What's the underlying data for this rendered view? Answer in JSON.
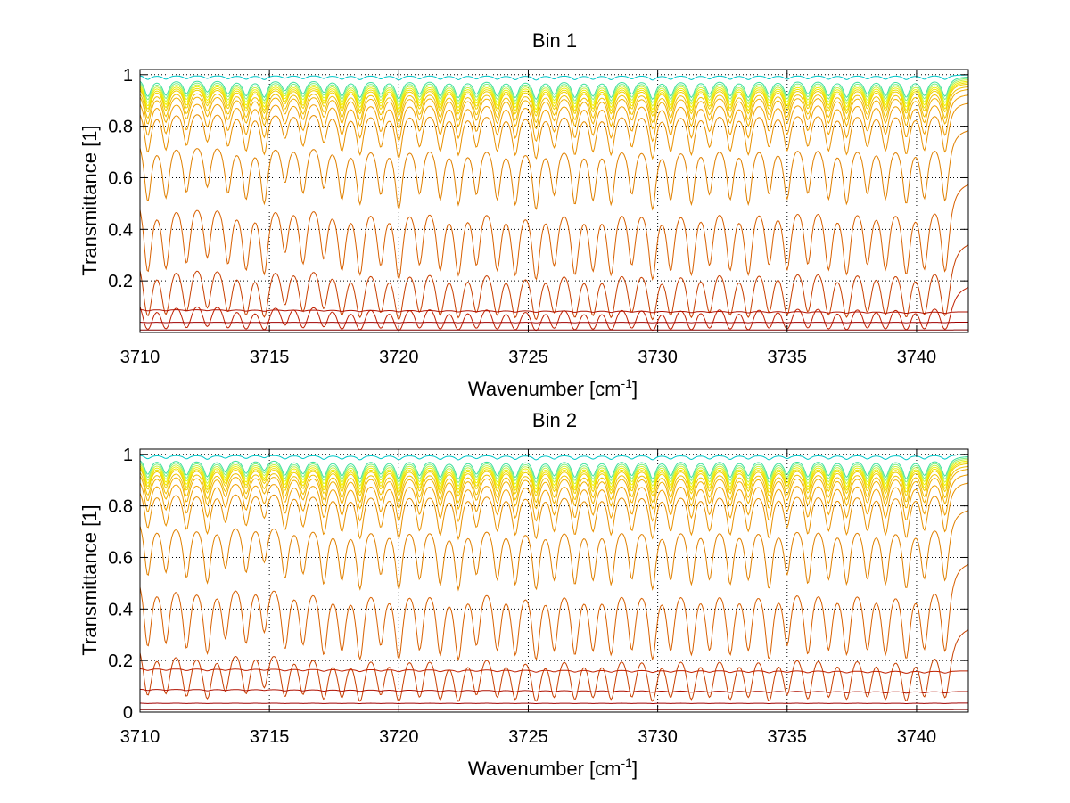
{
  "figure": {
    "background": "#ffffff"
  },
  "chart_data": [
    {
      "type": "line",
      "title": "Bin 1",
      "xlabel": "Wavenumber [cm",
      "xlabel_sup": "-1",
      "xlabel_end": "]",
      "ylabel": "Transmittance [1]",
      "xlim": [
        3710,
        3742
      ],
      "ylim": [
        0,
        1.02
      ],
      "xticks": [
        3710,
        3715,
        3720,
        3725,
        3730,
        3735,
        3740
      ],
      "xtick_labels": [
        "3710",
        "3715",
        "3720",
        "3725",
        "3730",
        "3735",
        "3740"
      ],
      "yticks": [
        0.2,
        0.4,
        0.6,
        0.8,
        1
      ],
      "ytick_labels": [
        "0.2",
        "0.4",
        "0.6",
        "0.8",
        "1"
      ],
      "grid": true,
      "curve_baselines": [
        1.0,
        0.995,
        0.99,
        0.985,
        0.98,
        0.975,
        0.97,
        0.96,
        0.95,
        0.93,
        0.9,
        0.8,
        0.6,
        0.37,
        0.2,
        0.09,
        0.04,
        0.01
      ],
      "curve_colors": [
        "#00c8c8",
        "#40e0a0",
        "#80f080",
        "#c8f040",
        "#f0f000",
        "#f0e000",
        "#f0d000",
        "#f0c000",
        "#f0b000",
        "#f0a000",
        "#e89000",
        "#e08000",
        "#d86000",
        "#c84000",
        "#c02000",
        "#b01000",
        "#a00000",
        "#800000"
      ],
      "line_positions": [
        3710.3,
        3711.0,
        3711.8,
        3712.6,
        3713.4,
        3714.1,
        3714.8,
        3715.6,
        3716.3,
        3717.1,
        3717.8,
        3718.5,
        3719.3,
        3720.0,
        3720.8,
        3721.6,
        3722.3,
        3723.0,
        3723.8,
        3724.5,
        3725.3,
        3726.0,
        3726.8,
        3727.5,
        3728.2,
        3729.0,
        3729.8,
        3730.5,
        3731.3,
        3732.0,
        3732.8,
        3733.5,
        3734.3,
        3735.0,
        3735.8,
        3736.6,
        3737.3,
        3738.1,
        3738.8,
        3739.6,
        3740.3,
        3741.1
      ],
      "line_depths": [
        0.55,
        0.5,
        0.45,
        0.4,
        0.45,
        0.5,
        0.55,
        0.35,
        0.45,
        0.4,
        0.5,
        0.55,
        0.45,
        0.6,
        0.45,
        0.5,
        0.55,
        0.45,
        0.5,
        0.55,
        0.6,
        0.45,
        0.55,
        0.5,
        0.55,
        0.45,
        0.6,
        0.5,
        0.55,
        0.45,
        0.5,
        0.55,
        0.45,
        0.5,
        0.45,
        0.5,
        0.55,
        0.45,
        0.5,
        0.55,
        0.5,
        0.55
      ]
    },
    {
      "type": "line",
      "title": "Bin 2",
      "xlabel": "Wavenumber [cm",
      "xlabel_sup": "-1",
      "xlabel_end": "]",
      "ylabel": "Transmittance [1]",
      "xlim": [
        3710,
        3742
      ],
      "ylim": [
        0,
        1.02
      ],
      "xticks": [
        3710,
        3715,
        3720,
        3725,
        3730,
        3735,
        3740
      ],
      "xtick_labels": [
        "3710",
        "3715",
        "3720",
        "3725",
        "3730",
        "3735",
        "3740"
      ],
      "yticks": [
        0,
        0.2,
        0.4,
        0.6,
        0.8,
        1
      ],
      "ytick_labels": [
        "0",
        "0.2",
        "0.4",
        "0.6",
        "0.8",
        "1"
      ],
      "grid": true,
      "curve_baselines": [
        1.0,
        0.995,
        0.99,
        0.985,
        0.98,
        0.975,
        0.97,
        0.96,
        0.95,
        0.93,
        0.9,
        0.8,
        0.6,
        0.35,
        0.17,
        0.09,
        0.035,
        0.01
      ],
      "curve_colors": [
        "#00c8c8",
        "#40e0a0",
        "#80f080",
        "#c8f040",
        "#f0f000",
        "#f0e000",
        "#f0d000",
        "#f0c000",
        "#f0b000",
        "#f0a000",
        "#e89000",
        "#e08000",
        "#d86000",
        "#c84000",
        "#c02000",
        "#b01000",
        "#a00000",
        "#800000"
      ],
      "line_positions": [
        3710.3,
        3711.0,
        3711.8,
        3712.6,
        3713.3,
        3714.1,
        3714.8,
        3715.6,
        3716.3,
        3717.1,
        3717.8,
        3718.5,
        3719.3,
        3720.0,
        3720.8,
        3721.6,
        3722.3,
        3723.0,
        3723.8,
        3724.5,
        3725.3,
        3726.0,
        3726.8,
        3727.5,
        3728.2,
        3729.0,
        3729.8,
        3730.5,
        3731.3,
        3732.0,
        3732.8,
        3733.5,
        3734.3,
        3735.0,
        3735.8,
        3736.6,
        3737.3,
        3738.1,
        3738.8,
        3739.6,
        3740.3,
        3741.1
      ],
      "line_depths": [
        0.5,
        0.45,
        0.5,
        0.55,
        0.4,
        0.45,
        0.35,
        0.5,
        0.45,
        0.55,
        0.5,
        0.6,
        0.45,
        0.6,
        0.5,
        0.55,
        0.6,
        0.45,
        0.5,
        0.55,
        0.6,
        0.5,
        0.55,
        0.5,
        0.55,
        0.5,
        0.6,
        0.5,
        0.55,
        0.5,
        0.55,
        0.5,
        0.6,
        0.45,
        0.55,
        0.5,
        0.55,
        0.5,
        0.55,
        0.6,
        0.5,
        0.55
      ]
    }
  ]
}
